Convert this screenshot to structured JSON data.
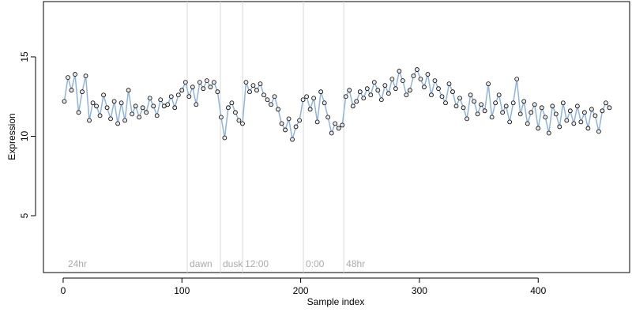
{
  "chart_data": {
    "type": "scatter",
    "x_label": "Sample index",
    "y_label": "Expression",
    "xlim": [
      -16.6,
      477
    ],
    "ylim": [
      1.42,
      18.48
    ],
    "xticks": [
      0,
      100,
      200,
      300,
      400
    ],
    "yticks": [
      5,
      10,
      15
    ],
    "vlines": [
      104.5,
      132.4,
      151.1,
      202.3,
      236.3
    ],
    "annotations": [
      {
        "text": "24hr",
        "x": 2
      },
      {
        "text": "dawn",
        "x": 104.5
      },
      {
        "text": "dusk",
        "x": 132.4
      },
      {
        "text": "12:00",
        "x": 151.1
      },
      {
        "text": "0:00",
        "x": 202.3
      },
      {
        "text": "48hr",
        "x": 236.3
      }
    ],
    "series": [
      {
        "color": "#8fb4dc",
        "x": [
          1,
          4,
          7,
          10,
          13,
          16,
          19,
          22,
          25,
          28,
          31,
          34,
          37,
          40,
          43,
          46,
          49,
          52,
          55,
          58,
          61,
          64,
          67,
          70,
          73,
          76,
          79,
          82,
          85,
          88,
          91,
          94,
          97,
          100,
          103,
          106,
          109,
          112,
          115,
          118,
          121,
          124,
          127,
          130,
          133,
          136,
          139,
          142,
          145,
          148,
          151,
          154,
          157,
          160,
          163,
          166,
          169,
          172,
          175,
          178,
          181,
          184,
          187,
          190,
          193,
          196,
          199,
          202,
          205,
          208,
          211,
          214,
          217,
          220,
          223,
          226,
          229,
          232,
          235,
          238,
          241,
          244,
          247,
          250,
          253,
          256,
          259,
          262,
          265,
          268,
          271,
          274,
          277,
          280,
          283,
          286,
          289,
          292,
          295,
          298,
          301,
          304,
          307,
          310,
          313,
          316,
          319,
          322,
          325,
          328,
          331,
          334,
          337,
          340,
          343,
          346,
          349,
          352,
          355,
          358,
          361,
          364,
          367,
          370,
          373,
          376,
          379,
          382,
          385,
          388,
          391,
          394,
          397,
          400,
          403,
          406,
          409,
          412,
          415,
          418,
          421,
          424,
          427,
          430,
          433,
          436,
          439,
          442,
          445,
          448,
          451,
          454,
          457,
          460
        ],
        "values": [
          12.2,
          13.7,
          12.9,
          13.9,
          11.5,
          12.8,
          13.8,
          11.0,
          12.1,
          11.9,
          11.3,
          12.6,
          11.8,
          11.1,
          12.2,
          10.8,
          12.1,
          11.0,
          12.9,
          11.4,
          11.9,
          11.2,
          11.8,
          11.5,
          12.4,
          11.9,
          11.3,
          12.3,
          11.9,
          12.0,
          12.5,
          11.8,
          12.6,
          12.9,
          13.4,
          12.5,
          13.1,
          12.0,
          13.4,
          13.0,
          13.5,
          13.1,
          13.4,
          12.8,
          11.2,
          9.9,
          11.8,
          12.1,
          11.5,
          11.0,
          10.8,
          13.4,
          12.8,
          13.2,
          12.9,
          13.3,
          12.6,
          12.3,
          12.0,
          12.5,
          11.7,
          10.8,
          10.4,
          11.1,
          9.8,
          10.6,
          11.0,
          12.3,
          12.5,
          11.7,
          12.4,
          10.9,
          12.8,
          12.1,
          11.2,
          10.2,
          10.8,
          10.5,
          10.7,
          12.5,
          12.9,
          11.9,
          12.2,
          12.8,
          12.4,
          13.0,
          12.6,
          13.4,
          12.9,
          12.3,
          13.2,
          12.7,
          13.6,
          13.0,
          14.1,
          13.5,
          12.6,
          12.9,
          13.8,
          14.2,
          13.6,
          13.1,
          13.9,
          12.6,
          13.5,
          13.0,
          12.5,
          12.1,
          13.3,
          12.8,
          11.9,
          12.4,
          11.8,
          11.1,
          12.6,
          12.2,
          11.4,
          12.0,
          11.6,
          13.3,
          11.2,
          12.1,
          12.6,
          11.5,
          11.9,
          10.9,
          12.1,
          13.6,
          11.4,
          12.2,
          10.8,
          11.5,
          12.0,
          10.5,
          11.8,
          11.2,
          10.2,
          11.9,
          11.4,
          10.6,
          12.1,
          11.0,
          11.6,
          10.8,
          11.9,
          10.9,
          11.5,
          10.5,
          11.7,
          11.3,
          10.3,
          11.6,
          12.1,
          11.8
        ]
      }
    ]
  }
}
